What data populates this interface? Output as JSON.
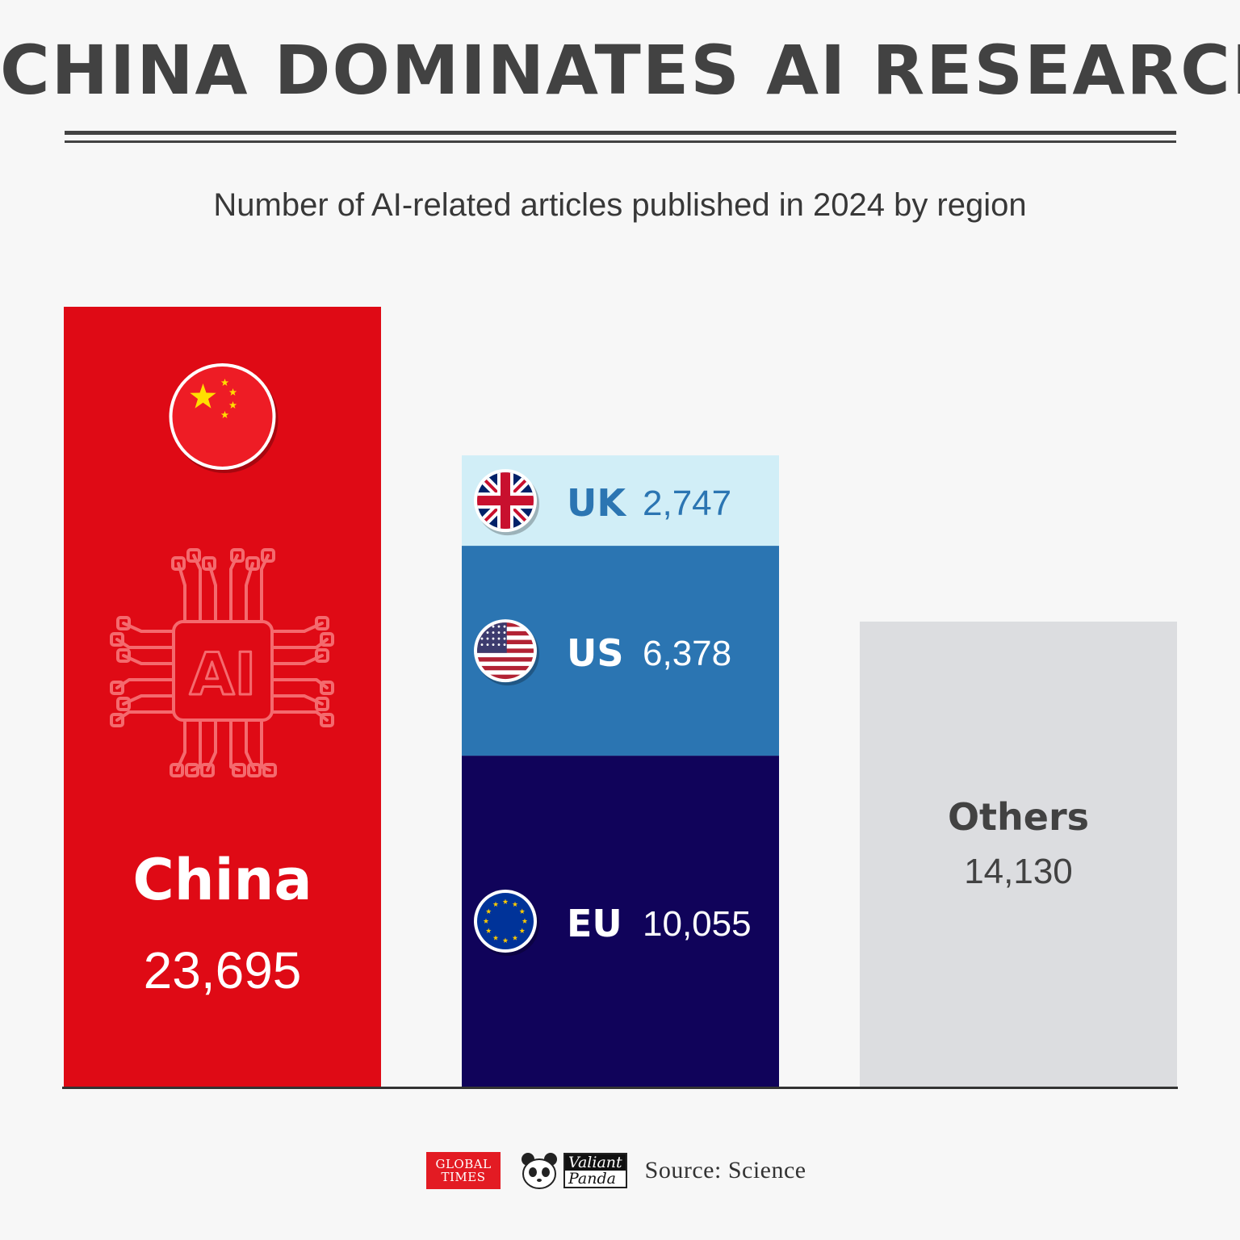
{
  "title": "CHINA DOMINATES AI RESEARCH",
  "subtitle": "Number of AI-related articles published in 2024 by region",
  "colors": {
    "china": "#df0a15",
    "uk": "#d1eef7",
    "us": "#2b75b2",
    "eu": "#10035a",
    "others": "#dcdde0",
    "text_dark": "#424242"
  },
  "chart_data": {
    "type": "bar",
    "stacked": true,
    "categories": [
      "China",
      "",
      "Others"
    ],
    "series": [
      {
        "name": "China",
        "values": [
          23695,
          0,
          0
        ]
      },
      {
        "name": "EU",
        "values": [
          0,
          10055,
          0
        ]
      },
      {
        "name": "US",
        "values": [
          0,
          6378,
          0
        ]
      },
      {
        "name": "UK",
        "values": [
          0,
          2747,
          0
        ]
      },
      {
        "name": "Others",
        "values": [
          0,
          0,
          14130
        ]
      }
    ],
    "bars": [
      {
        "label": "China",
        "value_text": "23,695",
        "value": 23695,
        "color": "#df0a15",
        "icon": "china-flag-icon",
        "decoration": "ai-chip-icon"
      },
      {
        "label": "",
        "segments": [
          {
            "label": "EU",
            "value_text": "10,055",
            "value": 10055,
            "color": "#10035a",
            "text_color": "#ffffff",
            "icon": "eu-flag-icon"
          },
          {
            "label": "US",
            "value_text": "6,378",
            "value": 6378,
            "color": "#2b75b2",
            "text_color": "#ffffff",
            "icon": "us-flag-icon"
          },
          {
            "label": "UK",
            "value_text": "2,747",
            "value": 2747,
            "color": "#d1eef7",
            "text_color": "#2b75b2",
            "icon": "uk-flag-icon"
          }
        ]
      },
      {
        "label": "Others",
        "value_text": "14,130",
        "value": 14130,
        "color": "#dcdde0",
        "text_color": "#424242"
      }
    ],
    "ylim": [
      0,
      23695
    ],
    "grid": false,
    "legend": "none",
    "title": "CHINA DOMINATES AI RESEARCH",
    "xlabel": "",
    "ylabel": ""
  },
  "footer": {
    "logo_global": "GLOBAL",
    "logo_times": "TIMES",
    "logo_valiant": "Valiant",
    "logo_panda": "Panda",
    "source": "Source: Science"
  }
}
